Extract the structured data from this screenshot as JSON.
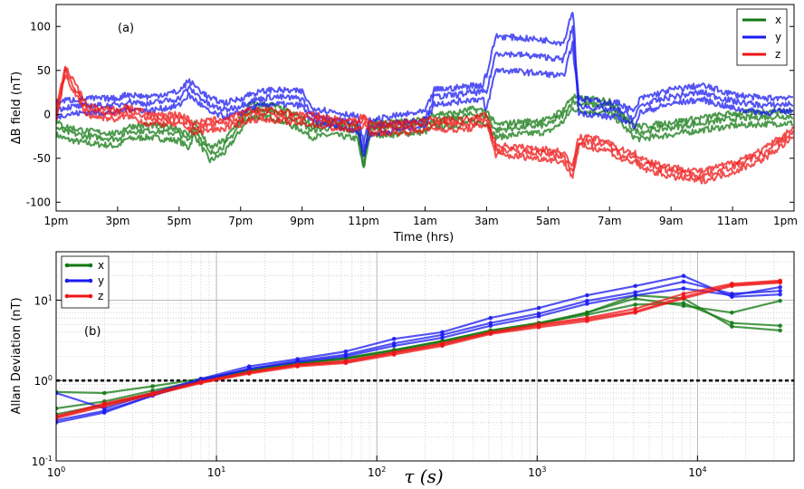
{
  "chart_data": [
    {
      "type": "line",
      "panel_label": "(a)",
      "ylabel": "ΔB field (nT)",
      "xlabel": "Time (hrs)",
      "ylim": [
        -110,
        125
      ],
      "yticks": [
        -100,
        -50,
        0,
        50,
        100
      ],
      "x_tick_labels": [
        "1pm",
        "3pm",
        "5pm",
        "7pm",
        "9pm",
        "11pm",
        "1am",
        "3am",
        "5am",
        "7am",
        "9am",
        "11am",
        "1pm"
      ],
      "xlim_hours": [
        0,
        24
      ],
      "legend": {
        "placement": "top-right",
        "entries": [
          "x",
          "y",
          "z"
        ]
      },
      "colors": {
        "x": "#127812",
        "y": "#1a1af0",
        "z": "#ee1515"
      },
      "series": [
        {
          "name": "x",
          "t": [
            0,
            0.3,
            1.0,
            2.0,
            2.3,
            3.0,
            4.0,
            4.3,
            4.5,
            5.0,
            5.5,
            6.0,
            6.3,
            7.0,
            8.0,
            8.3,
            9.0,
            9.8,
            10.0,
            10.2,
            11.0,
            12.0,
            12.3,
            13.0,
            13.5,
            14.0,
            14.3,
            15.0,
            16.0,
            16.5,
            16.8,
            17.0,
            18.0,
            18.3,
            18.8,
            19.0,
            20.0,
            21.0,
            22.0,
            23.0,
            24.0
          ],
          "v": [
            -15,
            -20,
            -25,
            -28,
            -20,
            -18,
            -22,
            -30,
            -15,
            -45,
            -35,
            -10,
            5,
            5,
            -10,
            -18,
            -15,
            -20,
            -55,
            -15,
            -15,
            -12,
            -5,
            -5,
            0,
            -2,
            -18,
            -15,
            -12,
            0,
            15,
            12,
            10,
            0,
            -18,
            -20,
            -15,
            -10,
            -5,
            -3,
            -2
          ]
        },
        {
          "name": "y",
          "t": [
            0,
            0.3,
            1.0,
            2.0,
            2.3,
            3.0,
            4.0,
            4.3,
            4.5,
            5.0,
            5.5,
            6.0,
            6.3,
            7.0,
            8.0,
            8.3,
            9.0,
            9.8,
            10.0,
            10.2,
            11.0,
            12.0,
            12.3,
            13.0,
            13.5,
            14.0,
            14.3,
            15.0,
            16.0,
            16.5,
            16.8,
            17.0,
            18.0,
            18.3,
            18.8,
            19.0,
            20.0,
            21.0,
            22.0,
            23.0,
            24.0
          ],
          "v": [
            5,
            8,
            10,
            10,
            15,
            12,
            18,
            30,
            25,
            10,
            5,
            10,
            15,
            20,
            18,
            0,
            -5,
            -10,
            -40,
            -15,
            -10,
            -5,
            20,
            22,
            25,
            25,
            70,
            68,
            65,
            62,
            100,
            10,
            5,
            5,
            -5,
            10,
            20,
            25,
            15,
            10,
            12
          ]
        },
        {
          "name": "z",
          "t": [
            0,
            0.3,
            1.0,
            2.0,
            2.3,
            3.0,
            4.0,
            4.3,
            4.5,
            5.0,
            5.5,
            6.0,
            6.3,
            7.0,
            8.0,
            8.3,
            9.0,
            9.8,
            10.0,
            10.2,
            11.0,
            12.0,
            12.3,
            13.0,
            13.5,
            14.0,
            14.3,
            15.0,
            16.0,
            16.5,
            16.8,
            17.0,
            18.0,
            18.3,
            18.8,
            19.0,
            20.0,
            21.0,
            22.0,
            23.0,
            24.0
          ],
          "v": [
            0,
            50,
            5,
            0,
            5,
            -5,
            -5,
            -10,
            -15,
            -12,
            -10,
            -5,
            0,
            0,
            -5,
            -5,
            -10,
            -12,
            -5,
            -15,
            -15,
            -12,
            -10,
            -12,
            -10,
            -5,
            -40,
            -42,
            -45,
            -48,
            -65,
            -30,
            -35,
            -45,
            -48,
            -55,
            -65,
            -70,
            -60,
            -45,
            -20
          ]
        }
      ]
    },
    {
      "type": "line",
      "panel_label": "(b)",
      "ylabel": "Allan Deviation (nT)",
      "xlabel": "τ (s)",
      "xscale": "log",
      "yscale": "log",
      "xlim": [
        1,
        40000
      ],
      "ylim": [
        0.1,
        40
      ],
      "x_tick_labels": [
        "10^0",
        "10^1",
        "10^2",
        "10^3",
        "10^4"
      ],
      "y_tick_labels": [
        "10^-1",
        "10^0",
        "10^1"
      ],
      "reference_line": {
        "y": 1.0,
        "style": "dotted",
        "color": "#000000"
      },
      "grid": true,
      "legend": {
        "placement": "top-left",
        "entries": [
          "x",
          "y",
          "z"
        ]
      },
      "colors": {
        "x": "#127812",
        "y": "#1a1af0",
        "z": "#ee1515"
      },
      "tau": [
        1,
        2,
        4,
        8,
        16,
        32,
        64,
        128,
        256,
        512,
        1024,
        2048,
        4096,
        8192,
        16384,
        32768
      ],
      "series": [
        {
          "name": "x",
          "values": [
            0.72,
            0.7,
            0.85,
            1.05,
            1.35,
            1.65,
            1.9,
            2.4,
            3.1,
            4.2,
            5.2,
            6.6,
            8.8,
            9.2,
            5.2,
            4.8
          ]
        },
        {
          "name": "x",
          "values": [
            0.45,
            0.55,
            0.75,
            1.0,
            1.35,
            1.65,
            1.9,
            2.4,
            3.1,
            4.2,
            5.2,
            7.0,
            10.5,
            8.5,
            7.0,
            9.8
          ]
        },
        {
          "name": "x",
          "values": [
            0.38,
            0.5,
            0.7,
            0.98,
            1.3,
            1.6,
            1.85,
            2.3,
            3.0,
            4.0,
            5.0,
            7.0,
            11.5,
            10.5,
            4.7,
            4.2
          ]
        },
        {
          "name": "y",
          "values": [
            0.7,
            0.45,
            0.7,
            1.05,
            1.5,
            1.85,
            2.3,
            3.3,
            4.0,
            6.0,
            8.0,
            11.5,
            15.0,
            20.0,
            11.0,
            11.8
          ]
        },
        {
          "name": "y",
          "values": [
            0.32,
            0.42,
            0.65,
            1.0,
            1.4,
            1.75,
            2.1,
            2.9,
            3.7,
            5.2,
            6.8,
            9.8,
            12.5,
            17.0,
            12.0,
            13.0
          ]
        },
        {
          "name": "y",
          "values": [
            0.3,
            0.4,
            0.65,
            1.0,
            1.4,
            1.7,
            2.0,
            2.7,
            3.4,
            4.8,
            6.3,
            9.0,
            11.5,
            14.0,
            11.5,
            14.5
          ]
        },
        {
          "name": "z",
          "values": [
            0.35,
            0.5,
            0.68,
            0.95,
            1.25,
            1.55,
            1.7,
            2.2,
            2.8,
            3.9,
            4.8,
            5.8,
            7.2,
            11.0,
            15.5,
            17.0
          ]
        },
        {
          "name": "z",
          "values": [
            0.36,
            0.52,
            0.7,
            0.97,
            1.28,
            1.58,
            1.75,
            2.25,
            2.9,
            4.0,
            5.0,
            6.0,
            7.8,
            12.0,
            16.0,
            17.5
          ]
        },
        {
          "name": "z",
          "values": [
            0.34,
            0.48,
            0.66,
            0.93,
            1.22,
            1.5,
            1.65,
            2.1,
            2.7,
            3.8,
            4.6,
            5.5,
            7.0,
            10.5,
            15.0,
            16.5
          ]
        }
      ]
    }
  ]
}
